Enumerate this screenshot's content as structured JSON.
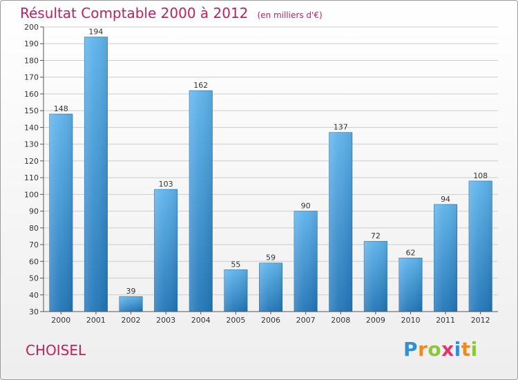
{
  "chart_title": "Résultat Comptable 2000 à 2012",
  "chart_unit": "(en milliers d'€)",
  "commune": "CHOISEL",
  "logo_text": "Proxiti",
  "colors": {
    "title": "#c41e5e",
    "bar_top": "#5eb3ec",
    "bar_bottom": "#2276b8",
    "grid": "#cccccc",
    "axis": "#555555"
  },
  "chart_data": {
    "type": "bar",
    "title": "Résultat Comptable 2000 à 2012",
    "xlabel": "",
    "ylabel": "",
    "categories": [
      "2000",
      "2001",
      "2002",
      "2003",
      "2004",
      "2005",
      "2006",
      "2007",
      "2008",
      "2009",
      "2010",
      "2011",
      "2012"
    ],
    "values": [
      148,
      194,
      39,
      103,
      162,
      55,
      59,
      90,
      137,
      72,
      62,
      94,
      108
    ],
    "ylim": [
      30,
      200
    ],
    "ytick_step": 10,
    "grid": true
  }
}
